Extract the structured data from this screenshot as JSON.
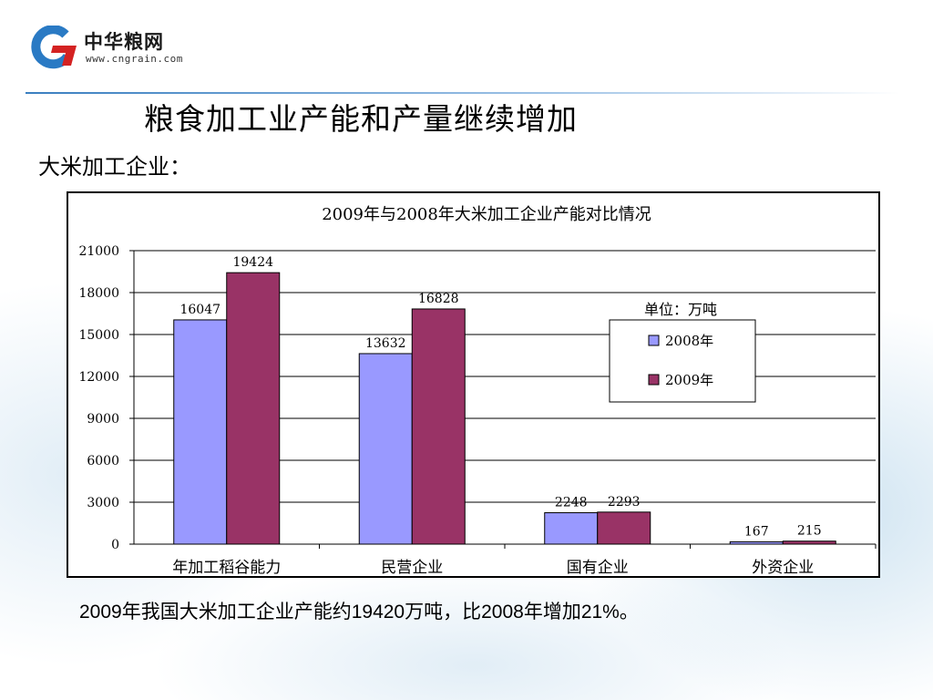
{
  "brand": {
    "name": "中华粮网",
    "url": "www.cngrain.com"
  },
  "slide": {
    "title": "粮食加工业产能和产量继续增加",
    "subtitle": "大米加工企业：",
    "footer": "2009年我国大米加工企业产能约19420万吨，比2008年增加21%。"
  },
  "chart_data": {
    "type": "bar",
    "title": "2009年与2008年大米加工企业产能对比情况",
    "unit_label": "单位：万吨",
    "categories": [
      "年加工稻谷能力",
      "民营企业",
      "国有企业",
      "外资企业"
    ],
    "series": [
      {
        "name": "2008年",
        "values": [
          16047,
          13632,
          2248,
          167
        ],
        "color": "#9999ff"
      },
      {
        "name": "2009年",
        "values": [
          19424,
          16828,
          2293,
          215
        ],
        "color": "#993366"
      }
    ],
    "ylim": [
      0,
      21000
    ],
    "yticks": [
      0,
      3000,
      6000,
      9000,
      12000,
      15000,
      18000,
      21000
    ],
    "grid": true,
    "legend_position": "right"
  }
}
